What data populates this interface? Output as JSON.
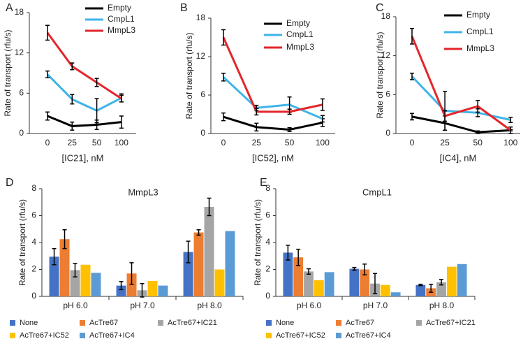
{
  "chart_data": [
    {
      "type": "line",
      "panel": "A",
      "x_label": "[IC21], nM",
      "y_label": "Rate of transport (rfu/s)",
      "categories": [
        "0",
        "25",
        "50",
        "100"
      ],
      "ylim": [
        0,
        18
      ],
      "yticks": [
        0,
        6,
        12,
        18
      ],
      "series": [
        {
          "name": "Empty",
          "color": "#000000",
          "values": [
            2.6,
            1.1,
            1.3,
            1.7
          ],
          "errors": [
            0.6,
            0.6,
            0.7,
            0.9
          ]
        },
        {
          "name": "CmpL1",
          "color": "#3fb4e8",
          "values": [
            8.8,
            5.1,
            3.4,
            5.3
          ],
          "errors": [
            0.5,
            0.7,
            1.8,
            0.6
          ]
        },
        {
          "name": "MmpL3",
          "color": "#e3262b",
          "values": [
            15,
            10,
            7.6,
            5.2
          ],
          "errors": [
            1.1,
            0.5,
            0.6,
            0.5
          ]
        }
      ]
    },
    {
      "type": "line",
      "panel": "B",
      "x_label": "[IC52], nM",
      "y_label": "Rate of transport (rfu/s)",
      "categories": [
        "0",
        "25",
        "50",
        "100"
      ],
      "ylim": [
        0,
        18
      ],
      "yticks": [
        0,
        6,
        12,
        18
      ],
      "series": [
        {
          "name": "Empty",
          "color": "#000000",
          "values": [
            2.6,
            1.0,
            0.6,
            1.7
          ],
          "errors": [
            0.6,
            0.6,
            0.3,
            0.6
          ]
        },
        {
          "name": "CmpL1",
          "color": "#3fb4e8",
          "values": [
            8.8,
            4.0,
            4.5,
            2.3
          ],
          "errors": [
            0.6,
            0.4,
            1.2,
            0.5
          ]
        },
        {
          "name": "MmpL3",
          "color": "#e3262b",
          "values": [
            15,
            3.4,
            3.4,
            4.5
          ],
          "errors": [
            1.2,
            0.5,
            0.4,
            0.9
          ]
        }
      ]
    },
    {
      "type": "line",
      "panel": "C",
      "x_label": "[IC4], nM",
      "y_label": "Rate of transport (rfu/s)",
      "categories": [
        "0",
        "25",
        "50",
        "100"
      ],
      "ylim": [
        0,
        18
      ],
      "yticks": [
        0,
        6,
        12,
        18
      ],
      "series": [
        {
          "name": "Empty",
          "color": "#000000",
          "values": [
            2.6,
            1.6,
            0.2,
            0.5
          ],
          "errors": [
            0.5,
            1.1,
            0.2,
            0.1
          ]
        },
        {
          "name": "CmpL1",
          "color": "#3fb4e8",
          "values": [
            8.8,
            3.5,
            3.2,
            2.1
          ],
          "errors": [
            0.5,
            3.0,
            0.6,
            0.4
          ]
        },
        {
          "name": "MmpL3",
          "color": "#e3262b",
          "values": [
            15,
            2.7,
            4.2,
            0.5
          ],
          "errors": [
            1.2,
            0.8,
            0.9,
            0.5
          ]
        }
      ]
    },
    {
      "type": "bar",
      "panel": "D",
      "title": "MmpL3",
      "y_label": "Rate of transport (rfu/s)",
      "categories": [
        "pH 6.0",
        "pH 7.0",
        "pH 8.0"
      ],
      "ylim": [
        0,
        8
      ],
      "yticks": [
        0,
        2,
        4,
        6,
        8
      ],
      "series": [
        {
          "name": "None",
          "color": "#4472c4",
          "values": [
            2.95,
            0.8,
            3.3
          ],
          "errors": [
            0.6,
            0.3,
            0.8
          ]
        },
        {
          "name": "AcTre67",
          "color": "#ed7d31",
          "values": [
            4.25,
            1.7,
            4.75
          ],
          "errors": [
            0.7,
            0.8,
            0.2
          ]
        },
        {
          "name": "AcTre67+IC21",
          "color": "#a5a5a5",
          "values": [
            1.95,
            0.45,
            6.65
          ],
          "errors": [
            0.5,
            0.5,
            0.65
          ]
        },
        {
          "name": "AcTre67+IC52",
          "color": "#ffc000",
          "values": [
            2.35,
            1.15,
            2.0
          ]
        },
        {
          "name": "AcTre67+IC4",
          "color": "#5b9bd5",
          "values": [
            1.75,
            0.8,
            4.85
          ]
        }
      ]
    },
    {
      "type": "bar",
      "panel": "E",
      "title": "CmpL1",
      "y_label": "Rate of transport (rfu/s)",
      "categories": [
        "pH 6.0",
        "pH 7.0",
        "pH 8.0"
      ],
      "ylim": [
        0,
        8
      ],
      "yticks": [
        0,
        2,
        4,
        6,
        8
      ],
      "series": [
        {
          "name": "None",
          "color": "#4472c4",
          "values": [
            3.25,
            2.05,
            0.85
          ],
          "errors": [
            0.55,
            0.1,
            0.05
          ]
        },
        {
          "name": "AcTre67",
          "color": "#ed7d31",
          "values": [
            2.9,
            2.0,
            0.6
          ],
          "errors": [
            0.6,
            0.4,
            0.3
          ]
        },
        {
          "name": "AcTre67+IC21",
          "color": "#a5a5a5",
          "values": [
            1.85,
            0.95,
            1.05
          ],
          "errors": [
            0.2,
            0.75,
            0.2
          ]
        },
        {
          "name": "AcTre67+IC52",
          "color": "#ffc000",
          "values": [
            1.2,
            0.85,
            2.2
          ]
        },
        {
          "name": "AcTre67+IC4",
          "color": "#5b9bd5",
          "values": [
            1.8,
            0.3,
            2.4
          ]
        }
      ]
    }
  ]
}
